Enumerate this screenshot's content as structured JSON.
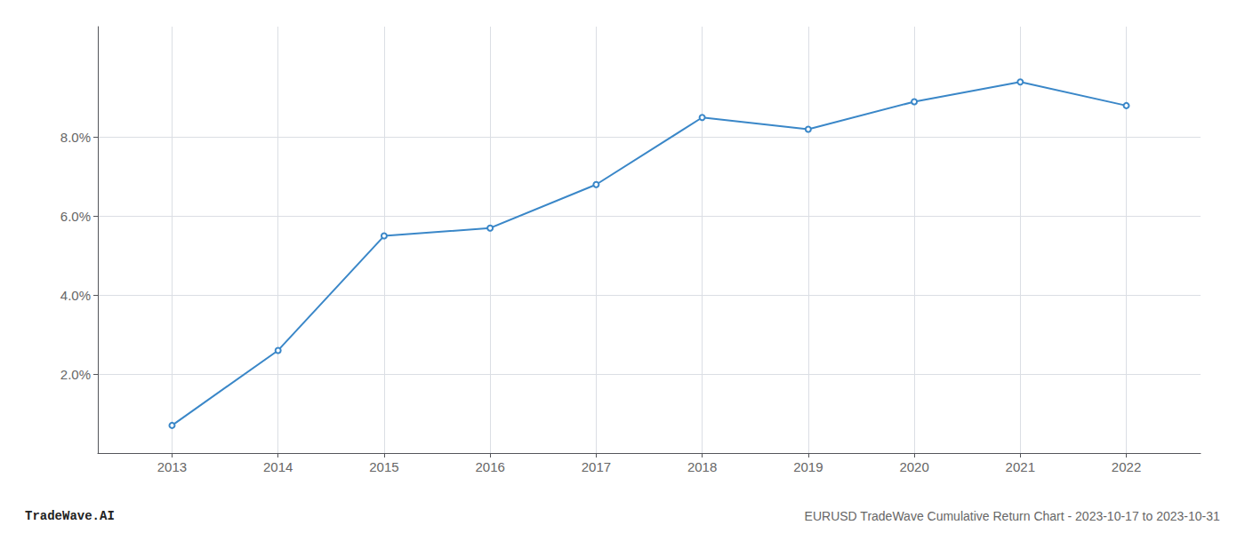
{
  "chart_data": {
    "type": "line",
    "x": [
      2013,
      2014,
      2015,
      2016,
      2017,
      2018,
      2019,
      2020,
      2021,
      2022
    ],
    "values": [
      0.007,
      0.026,
      0.055,
      0.057,
      0.068,
      0.085,
      0.082,
      0.089,
      0.094,
      0.088
    ],
    "color": "#3a87c8",
    "xlim": [
      2012.3,
      2022.7
    ],
    "xticks": [
      2013,
      2014,
      2015,
      2016,
      2017,
      2018,
      2019,
      2020,
      2021,
      2022
    ],
    "ylim": [
      0.0,
      0.108
    ],
    "yticks": [
      {
        "value": 0.02,
        "label": "2.0%"
      },
      {
        "value": 0.04,
        "label": "4.0%"
      },
      {
        "value": 0.06,
        "label": "6.0%"
      },
      {
        "value": 0.08,
        "label": "8.0%"
      }
    ],
    "grid": true,
    "annotations": [
      "TradeWave.AI",
      "EURUSD TradeWave Cumulative Return Chart - 2023-10-17 to 2023-10-31"
    ]
  }
}
